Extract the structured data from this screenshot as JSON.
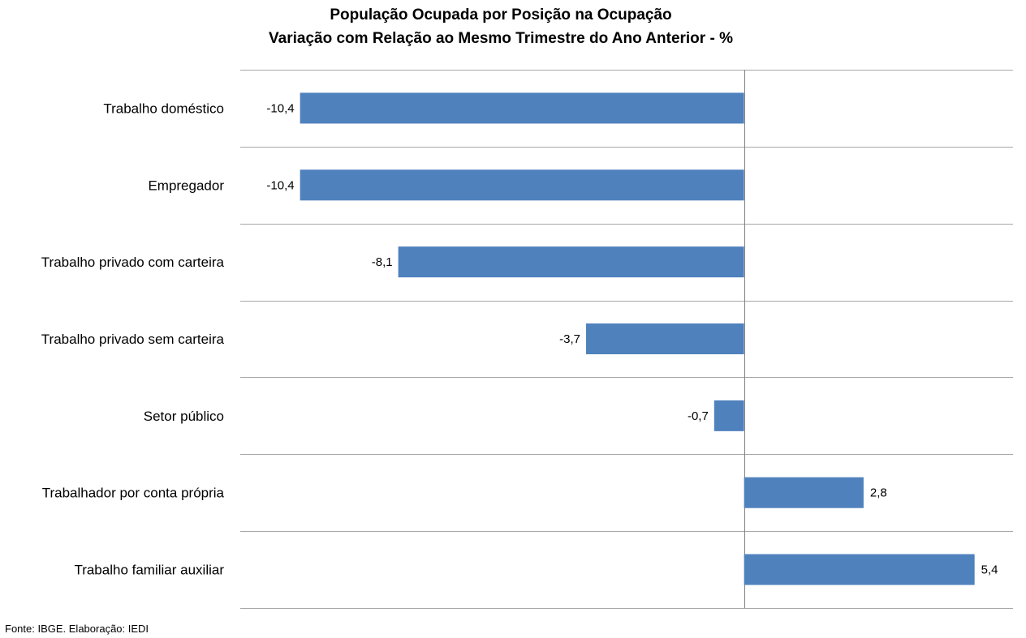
{
  "chart_data": {
    "type": "bar",
    "orientation": "horizontal",
    "title": "População Ocupada por Posição na Ocupação",
    "subtitle": "Variação com Relação ao Mesmo Trimestre do Ano Anterior - %",
    "xlabel": "",
    "ylabel": "",
    "categories": [
      "Trabalho doméstico",
      "Empregador",
      "Trabalho privado com carteira",
      "Trabalho privado sem carteira",
      "Setor público",
      "Trabalhador por conta própria",
      "Trabalho familiar auxiliar"
    ],
    "values": [
      -10.4,
      -10.4,
      -8.1,
      -3.7,
      -0.7,
      2.8,
      5.4
    ],
    "value_labels": [
      "-10,4",
      "-10,4",
      "-8,1",
      "-3,7",
      "-0,7",
      "2,8",
      "5,4"
    ],
    "xlim": [
      -11.8,
      6.3
    ],
    "grid": true,
    "legend": "none",
    "bar_color": "#4f81bd"
  },
  "source": "Fonte: IBGE. Elaboração: IEDI"
}
